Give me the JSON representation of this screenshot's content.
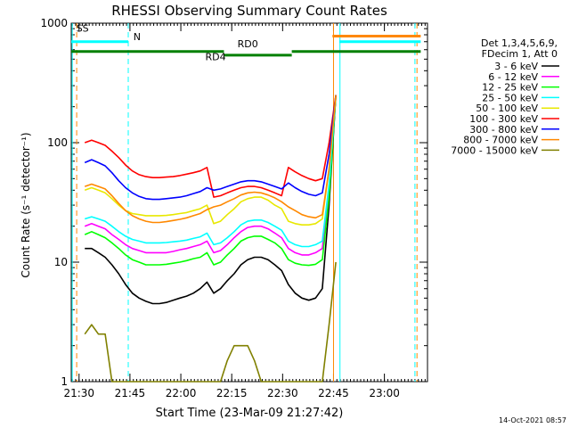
{
  "chart_data": {
    "type": "line",
    "title": "RHESSI Observing Summary Count Rates",
    "xlabel": "Start Time (23-Mar-09 21:27:42)",
    "ylabel": "Count Rate (s⁻¹ detector⁻¹)",
    "yscale": "log",
    "ylim": [
      1,
      1000
    ],
    "x_units": "minutes after 21:27:42",
    "xlim": [
      0,
      105
    ],
    "xticks": [
      "21:30",
      "21:45",
      "22:00",
      "22:15",
      "22:30",
      "22:45",
      "23:00"
    ],
    "xtick_pos": [
      2.3,
      17.3,
      32.3,
      47.3,
      62.3,
      77.3,
      92.3
    ],
    "yticks": [
      "1",
      "10",
      "100",
      "1000"
    ],
    "yticks_val": [
      1,
      10,
      100,
      1000
    ],
    "grid": false,
    "legend_position": "right",
    "legend_header": [
      "Det 1,3,4,5,6,9,",
      "FDecim 1, Att 0"
    ],
    "timestamp": "14-Oct-2021 08:57",
    "x": [
      4,
      6,
      8,
      10,
      12,
      14,
      16,
      18,
      20,
      22,
      24,
      26,
      28,
      30,
      32,
      34,
      36,
      38,
      40,
      42,
      44,
      46,
      48,
      50,
      52,
      54,
      56,
      58,
      60,
      62,
      64,
      66,
      68,
      70,
      72,
      74,
      76,
      78
    ],
    "series": [
      {
        "name": "3 - 6 keV",
        "color": "#000000",
        "values": [
          13,
          13,
          12,
          11,
          9.5,
          8,
          6.5,
          5.5,
          5,
          4.7,
          4.5,
          4.5,
          4.6,
          4.8,
          5,
          5.2,
          5.5,
          6,
          6.8,
          5.5,
          6,
          7,
          8,
          9.5,
          10.5,
          11,
          11,
          10.5,
          9.5,
          8.5,
          6.5,
          5.5,
          5,
          4.8,
          5,
          6,
          30,
          250
        ]
      },
      {
        "name": "6 - 12 keV",
        "color": "#ff00ff",
        "values": [
          20,
          21,
          20,
          19,
          17,
          15.5,
          14,
          13,
          12.5,
          12,
          12,
          12,
          12,
          12.3,
          12.7,
          13,
          13.5,
          14,
          15,
          12,
          12.5,
          14,
          16,
          18,
          19.5,
          20,
          20,
          19,
          17.5,
          16,
          13,
          12,
          11.5,
          11.5,
          12,
          13,
          40,
          250
        ]
      },
      {
        "name": "12 - 25 keV",
        "color": "#00ff00",
        "values": [
          17,
          18,
          17,
          16,
          14.5,
          13,
          11.5,
          10.5,
          10,
          9.5,
          9.5,
          9.5,
          9.6,
          9.8,
          10,
          10.3,
          10.7,
          11,
          12,
          9.5,
          10,
          11.5,
          13,
          15,
          16,
          16.5,
          16.5,
          15.5,
          14.5,
          13,
          10.5,
          9.8,
          9.5,
          9.4,
          9.6,
          10.5,
          35,
          250
        ]
      },
      {
        "name": "25 - 50 keV",
        "color": "#00ffff",
        "values": [
          23,
          24,
          23,
          22,
          20,
          18,
          16.5,
          15.5,
          15,
          14.5,
          14.5,
          14.5,
          14.6,
          14.8,
          15,
          15.3,
          15.8,
          16.3,
          17.5,
          14,
          14.5,
          16,
          18,
          20.5,
          22,
          22.5,
          22.5,
          21.5,
          20,
          18.5,
          15,
          14,
          13.5,
          13.5,
          14,
          15,
          45,
          250
        ]
      },
      {
        "name": "50 - 100 keV",
        "color": "#e8e800",
        "values": [
          40,
          42,
          40,
          38,
          34,
          30,
          27,
          25.5,
          25,
          24.5,
          24.5,
          24.5,
          24.6,
          25,
          25.5,
          26,
          27,
          28,
          30,
          21,
          22,
          25,
          28,
          32,
          34,
          35,
          35,
          33,
          30,
          28,
          22,
          21,
          20.5,
          20.5,
          21,
          23,
          60,
          250
        ]
      },
      {
        "name": "100 - 300 keV",
        "color": "#ff0000",
        "values": [
          100,
          105,
          100,
          95,
          85,
          75,
          65,
          58,
          54,
          52,
          51,
          51,
          51.5,
          52,
          53,
          54.5,
          56,
          58,
          62,
          35,
          36,
          38,
          40,
          42,
          43,
          43,
          42,
          40,
          38,
          36,
          62,
          57,
          53,
          50,
          48,
          50,
          100,
          250
        ]
      },
      {
        "name": "300 - 800 keV",
        "color": "#0000ff",
        "values": [
          68,
          72,
          68,
          64,
          56,
          48,
          42,
          38,
          35.5,
          34,
          33.5,
          33.5,
          34,
          34.5,
          35,
          36,
          37.5,
          39,
          42,
          40,
          41,
          43,
          45,
          47,
          48,
          48,
          47,
          45,
          43,
          41,
          46,
          42,
          39,
          37,
          36,
          38,
          80,
          250
        ]
      },
      {
        "name": "800 - 7000 keV",
        "color": "#ff8800",
        "values": [
          43,
          45,
          43,
          41,
          36,
          31,
          27,
          24.5,
          23,
          22,
          21.5,
          21.5,
          21.8,
          22.3,
          22.8,
          23.5,
          24.5,
          25.5,
          27.5,
          29,
          30,
          32,
          34,
          36.5,
          38,
          38.5,
          38,
          36.5,
          34.5,
          32,
          29,
          27,
          25,
          24,
          23.5,
          25,
          60,
          250
        ]
      },
      {
        "name": "7000 - 15000 keV",
        "color": "#808000",
        "values": [
          2.5,
          3,
          2.5,
          2.5,
          1,
          1,
          1,
          1,
          1,
          1,
          1,
          1,
          1,
          1,
          1,
          1,
          1,
          1,
          1,
          1,
          1,
          1.5,
          2,
          2,
          2,
          1.5,
          1,
          1,
          1,
          1,
          1,
          1,
          1,
          1,
          1,
          1,
          3,
          10
        ]
      }
    ],
    "annotations": [
      {
        "text": "S",
        "color": "#ff8800",
        "x": 1.5,
        "y": 850
      },
      {
        "text": "S",
        "color": "#ff8800",
        "x": 3.3,
        "y": 850
      },
      {
        "text": "N",
        "color": "#00e6e6",
        "x": 18.3,
        "y": 720
      },
      {
        "text": "RD0",
        "color": "#008000",
        "x": 49,
        "y": 630
      },
      {
        "text": "RD4",
        "color": "#008000",
        "x": 39.5,
        "y": 490
      }
    ],
    "state_bars": [
      {
        "name": "flare",
        "color": "#ff8800",
        "segments": [
          [
            77,
            103
          ]
        ],
        "y": 780
      },
      {
        "name": "night",
        "color": "#00ffff",
        "segments": [
          [
            0,
            16.8
          ],
          [
            79,
            103
          ]
        ],
        "y": 700
      },
      {
        "name": "saa-rd0",
        "color": "#008000",
        "segments": [
          [
            0,
            45
          ],
          [
            65,
            103
          ]
        ],
        "y": 580
      },
      {
        "name": "saa-rd4",
        "color": "#008000",
        "segments": [
          [
            45,
            65
          ]
        ],
        "y": 540
      }
    ],
    "vlines": [
      {
        "x": 0.3,
        "color": "#00ffff",
        "dash": false
      },
      {
        "x": 1.6,
        "color": "#ff8800",
        "dash": true
      },
      {
        "x": 16.8,
        "color": "#00ffff",
        "dash": true
      },
      {
        "x": 77.3,
        "color": "#ff8800",
        "dash": false
      },
      {
        "x": 79.2,
        "color": "#00ffff",
        "dash": false
      },
      {
        "x": 101.3,
        "color": "#00ffff",
        "dash": true
      },
      {
        "x": 101.9,
        "color": "#ff8800",
        "dash": true
      }
    ]
  }
}
